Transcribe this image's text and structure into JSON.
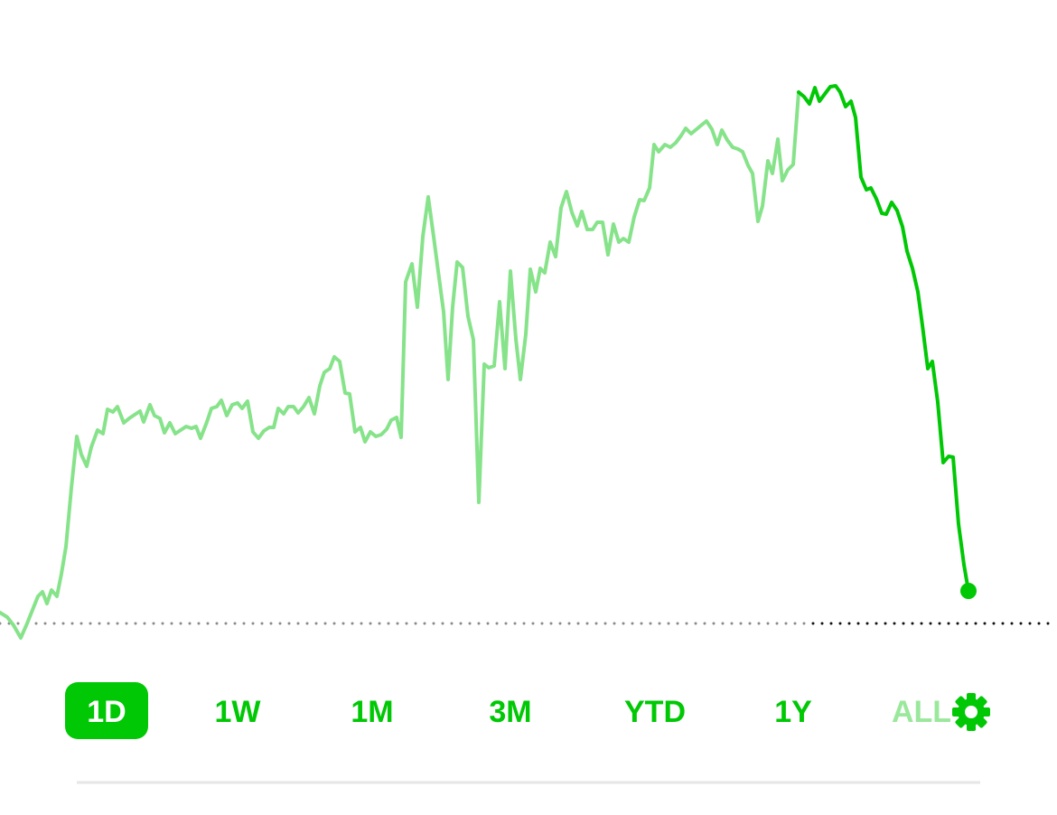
{
  "chart_data": {
    "type": "line",
    "xlim": [
      0,
      1170
    ],
    "ylim": [
      0,
      700
    ],
    "reference_line": 10,
    "series": [
      {
        "color": "#86e38a",
        "x": [
          0,
          8,
          15,
          23,
          30,
          36,
          42,
          47,
          52,
          57,
          63,
          68,
          73,
          79,
          85,
          90,
          96,
          101,
          108,
          114,
          119,
          125,
          130,
          137,
          143,
          149,
          155,
          159,
          166,
          171,
          177,
          182,
          188,
          194,
          200,
          206,
          212,
          217,
          222,
          229,
          234,
          240,
          245,
          251,
          257,
          263,
          268,
          274,
          280,
          286,
          292,
          298,
          303,
          308,
          314,
          319,
          325,
          330,
          336,
          342,
          348,
          354,
          359,
          365,
          370,
          376,
          382,
          387,
          393,
          399,
          404,
          410,
          416,
          422,
          428,
          433,
          439,
          444,
          449,
          456,
          462,
          468,
          474,
          480,
          485,
          491,
          496,
          501,
          506,
          512,
          518,
          524,
          530,
          536,
          541,
          547,
          553,
          559,
          565,
          571,
          576,
          582,
          587,
          593,
          598,
          603,
          609,
          615,
          621,
          627,
          633,
          639,
          644,
          650,
          656,
          661,
          667,
          673,
          679,
          685,
          690,
          696,
          702,
          708,
          713,
          719,
          724,
          729,
          736,
          742,
          748,
          754,
          759,
          765,
          771,
          777,
          782,
          788,
          794,
          799,
          805,
          811,
          817,
          822,
          828,
          833,
          839,
          844,
          850,
          855,
          861,
          866,
          872,
          878,
          884
        ],
        "values": [
          22,
          17,
          8,
          -6,
          10,
          25,
          40,
          45,
          32,
          47,
          40,
          65,
          95,
          160,
          217,
          197,
          184,
          205,
          224,
          220,
          247,
          244,
          250,
          232,
          237,
          241,
          245,
          233,
          252,
          240,
          237,
          221,
          232,
          220,
          224,
          228,
          226,
          228,
          215,
          233,
          248,
          250,
          257,
          240,
          252,
          254,
          248,
          256,
          222,
          215,
          223,
          227,
          227,
          248,
          242,
          250,
          250,
          243,
          250,
          260,
          242,
          273,
          288,
          292,
          305,
          300,
          265,
          264,
          222,
          227,
          211,
          222,
          217,
          219,
          225,
          235,
          238,
          216,
          388,
          408,
          360,
          438,
          482,
          438,
          400,
          355,
          280,
          360,
          410,
          404,
          350,
          324,
          144,
          297,
          293,
          295,
          366,
          292,
          400,
          325,
          280,
          330,
          402,
          377,
          403,
          398,
          432,
          416,
          470,
          488,
          465,
          450,
          466,
          446,
          446,
          454,
          454,
          418,
          452,
          432,
          436,
          432,
          460,
          479,
          478,
          492,
          540,
          532,
          540,
          537,
          542,
          550,
          558,
          552,
          557,
          562,
          566,
          557,
          540,
          556,
          545,
          537,
          535,
          532,
          517,
          508,
          455,
          472,
          522,
          508,
          546,
          500,
          512,
          518,
          598
        ]
      },
      {
        "color": "#00c805",
        "x": [
          884,
          890,
          896,
          902,
          907,
          913,
          919,
          925,
          930,
          936,
          942,
          947,
          953,
          959,
          964,
          970,
          976,
          981,
          987,
          993,
          999,
          1004,
          1010,
          1016,
          1021,
          1027,
          1032,
          1038,
          1044,
          1050,
          1055,
          1061,
          1067,
          1072
        ],
        "values": [
          598,
          593,
          585,
          603,
          588,
          596,
          604,
          605,
          598,
          582,
          588,
          570,
          504,
          490,
          492,
          480,
          464,
          463,
          476,
          467,
          449,
          422,
          403,
          377,
          340,
          292,
          300,
          255,
          188,
          195,
          194,
          120,
          75,
          46
        ]
      }
    ]
  },
  "tabs": [
    "1D",
    "1W",
    "1M",
    "3M",
    "YTD",
    "1Y",
    "ALL"
  ],
  "selected_tab": 0
}
